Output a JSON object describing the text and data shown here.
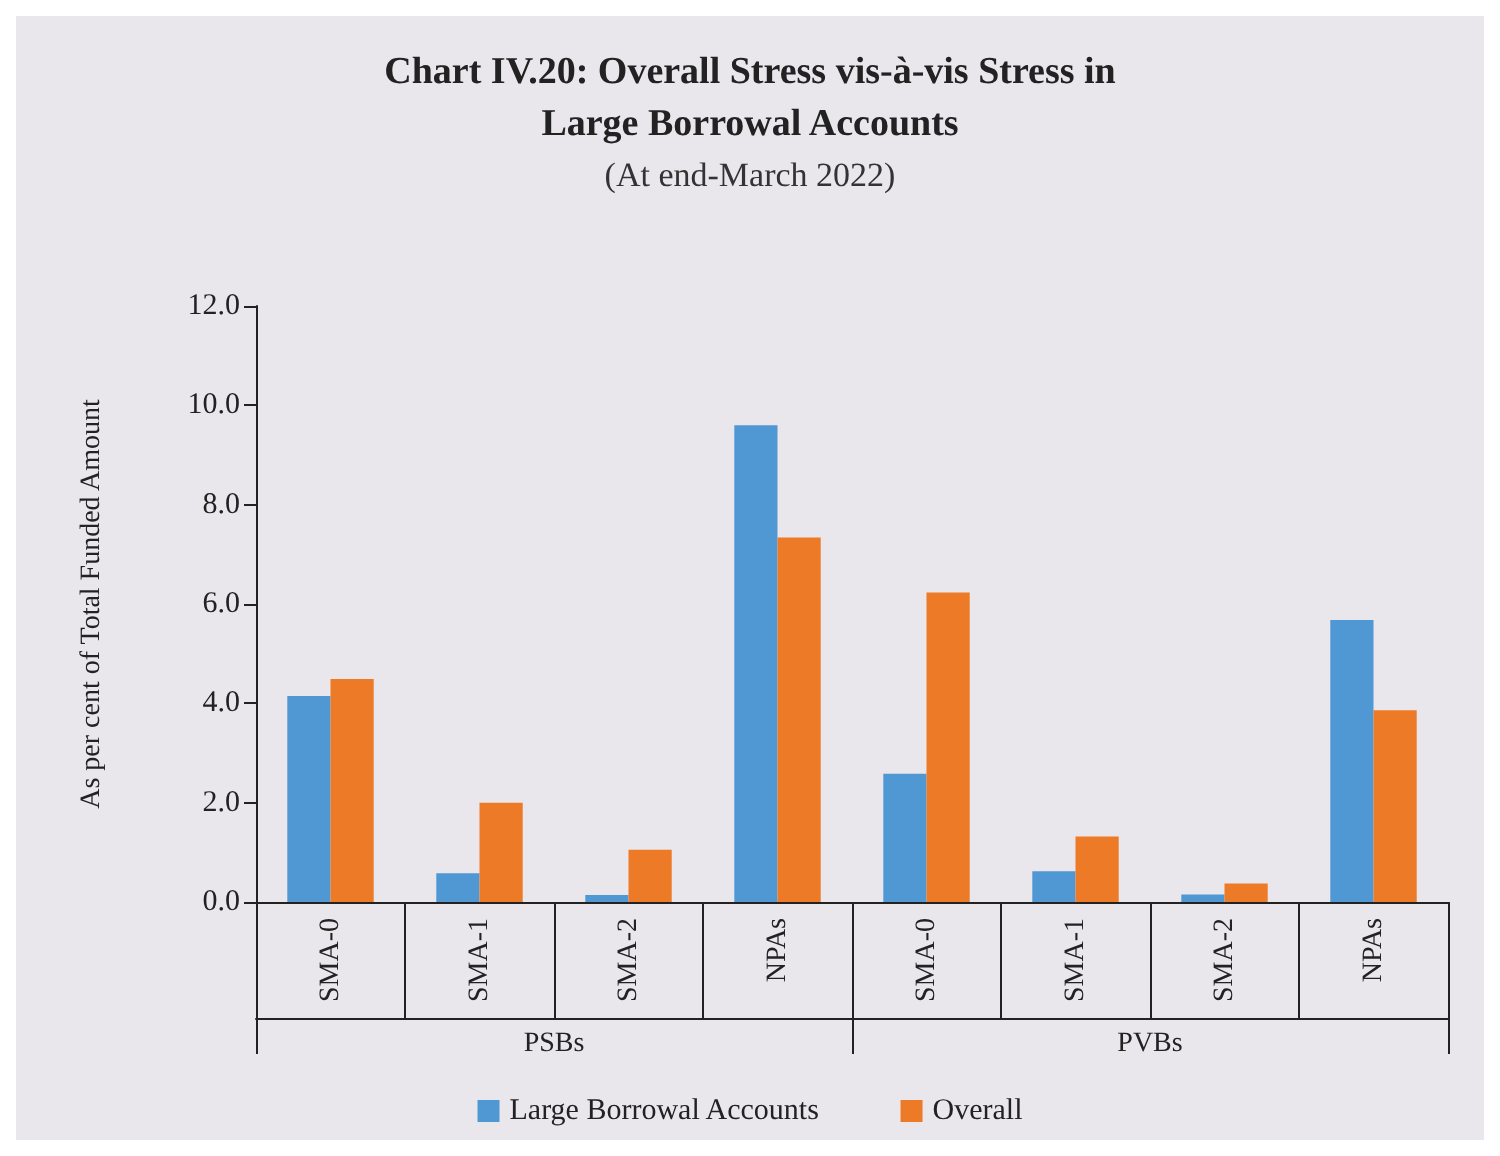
{
  "chart_data": {
    "type": "bar",
    "title": "Chart IV.20: Overall Stress vis-à-vis Stress in\nLarge Borrowal Accounts",
    "subtitle": "(At end-March 2022)",
    "ylabel": "As per cent of Total Funded Amount",
    "categories": [
      "SMA-0",
      "SMA-1",
      "SMA-2",
      "NPAs",
      "SMA-0",
      "SMA-1",
      "SMA-2",
      "NPAs"
    ],
    "annotations": [
      "PSBs",
      "PVBs"
    ],
    "series": [
      {
        "name": "Large Borrowal Accounts",
        "color": "#5098d3",
        "values": [
          4.15,
          0.58,
          0.14,
          9.6,
          2.58,
          0.62,
          0.15,
          5.68
        ]
      },
      {
        "name": "Overall",
        "color": "#ec7a27",
        "values": [
          4.49,
          2.0,
          1.05,
          7.34,
          6.23,
          1.32,
          0.37,
          3.86
        ]
      }
    ],
    "ylim": [
      0,
      12
    ],
    "yticks": [
      {
        "value": 0,
        "label": "0.0"
      },
      {
        "value": 2,
        "label": "2.0"
      },
      {
        "value": 4,
        "label": "4.0"
      },
      {
        "value": 6,
        "label": "6.0"
      },
      {
        "value": 8,
        "label": "8.0"
      },
      {
        "value": 10,
        "label": "10.0"
      },
      {
        "value": 12,
        "label": "12.0"
      }
    ],
    "grid": false,
    "legend": "bottom"
  }
}
